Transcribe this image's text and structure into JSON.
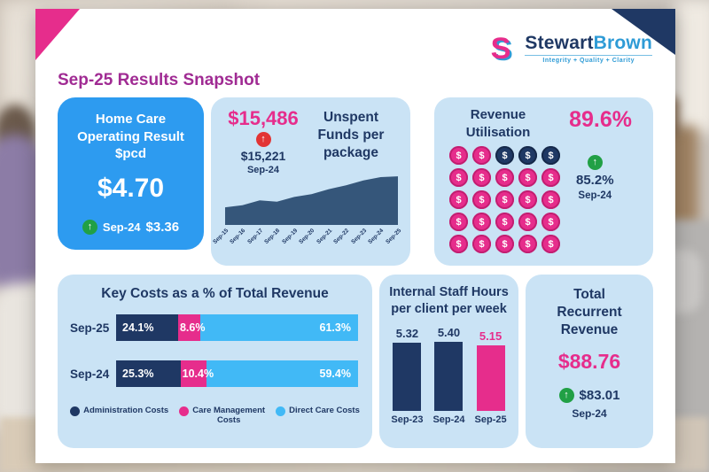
{
  "header": {
    "title": "Sep-25 Results Snapshot",
    "logo": {
      "part1": "Stewart",
      "part2": "Brown",
      "monogram": "S",
      "tagline": "Integrity + Quality + Clarity"
    }
  },
  "icons": {
    "up_arrow": "↑"
  },
  "colors": {
    "navy": "#1F3864",
    "pink": "#E62D8C",
    "panel_blue": "#CAE3F5",
    "bright_blue": "#2D9BF0",
    "sky_blue": "#41B9F6",
    "area_fill": "#35567A",
    "title_purple": "#A02B93",
    "logo_blue": "#2E9BD6",
    "green": "#21A045",
    "red": "#E23434"
  },
  "panels": {
    "home_care": {
      "title": "Home Care Operating Result $pcd",
      "value": "$4.70",
      "prev_label": "Sep-24",
      "prev_value": "$3.36",
      "trend_icon": "up-arrow-green"
    },
    "unspent_funds": {
      "title": "Unspent Funds per package",
      "value": "$15,486",
      "prev_value": "$15,221",
      "prev_label": "Sep-24",
      "trend_icon": "up-arrow-red",
      "x_labels": [
        "Sep-15",
        "Sep-16",
        "Sep-17",
        "Sep-18",
        "Sep-19",
        "Sep-20",
        "Sep-21",
        "Sep-22",
        "Sep-23",
        "Sep-24",
        "Sep-25"
      ],
      "values": [
        5600,
        6300,
        7800,
        7400,
        8900,
        9800,
        11400,
        12600,
        14200,
        15221,
        15486
      ]
    },
    "revenue_utilisation": {
      "title": "Revenue Utilisation",
      "value": "89.6%",
      "prev_value": "85.2%",
      "prev_label": "Sep-24",
      "trend_icon": "up-arrow-green",
      "coin_symbol": "$",
      "coin_rows": [
        [
          "pink",
          "pink",
          "navy",
          "navy",
          "navy"
        ],
        [
          "pink",
          "pink",
          "pink",
          "pink",
          "pink"
        ],
        [
          "pink",
          "pink",
          "pink",
          "pink",
          "pink"
        ],
        [
          "pink",
          "pink",
          "pink",
          "pink",
          "pink"
        ],
        [
          "pink",
          "pink",
          "pink",
          "pink",
          "pink"
        ]
      ]
    },
    "key_costs": {
      "title": "Key Costs as a % of Total Revenue",
      "rows": [
        {
          "label": "Sep-25",
          "values": [
            24.1,
            8.6,
            61.3
          ],
          "value_labels": [
            "24.1%",
            "8.6%",
            "61.3%"
          ]
        },
        {
          "label": "Sep-24",
          "values": [
            25.3,
            10.4,
            59.4
          ],
          "value_labels": [
            "25.3%",
            "10.4%",
            "59.4%"
          ]
        }
      ],
      "legend": [
        {
          "label": "Administration Costs",
          "color": "#1F3864"
        },
        {
          "label": "Care Management Costs",
          "color": "#E62D8C"
        },
        {
          "label": "Direct Care Costs",
          "color": "#41B9F6"
        }
      ]
    },
    "staff_hours": {
      "title": "Internal Staff Hours per client per week",
      "categories": [
        "Sep-23",
        "Sep-24",
        "Sep-25"
      ],
      "values": [
        5.32,
        5.4,
        5.15
      ],
      "value_labels": [
        "5.32",
        "5.40",
        "5.15"
      ],
      "bar_colors": [
        "navy",
        "navy",
        "pink"
      ]
    },
    "total_revenue": {
      "title": "Total Recurrent Revenue",
      "value": "$88.76",
      "prev_value": "$83.01",
      "prev_label": "Sep-24",
      "trend_icon": "up-arrow-green"
    }
  },
  "chart_data": [
    {
      "type": "area",
      "title": "Unspent Funds per package",
      "x": [
        "Sep-15",
        "Sep-16",
        "Sep-17",
        "Sep-18",
        "Sep-19",
        "Sep-20",
        "Sep-21",
        "Sep-22",
        "Sep-23",
        "Sep-24",
        "Sep-25"
      ],
      "values": [
        5600,
        6300,
        7800,
        7400,
        8900,
        9800,
        11400,
        12600,
        14200,
        15221,
        15486
      ],
      "ylim": [
        0,
        16000
      ],
      "grid": false,
      "legend": "none"
    },
    {
      "type": "bar",
      "stacked": true,
      "orientation": "horizontal",
      "title": "Key Costs as a % of Total Revenue",
      "categories": [
        "Sep-25",
        "Sep-24"
      ],
      "series": [
        {
          "name": "Administration Costs",
          "values": [
            24.1,
            25.3
          ],
          "color": "#1F3864"
        },
        {
          "name": "Care Management Costs",
          "values": [
            8.6,
            10.4
          ],
          "color": "#E62D8C"
        },
        {
          "name": "Direct Care Costs",
          "values": [
            61.3,
            59.4
          ],
          "color": "#41B9F6"
        }
      ],
      "legend_position": "bottom"
    },
    {
      "type": "bar",
      "title": "Internal Staff Hours per client per week",
      "categories": [
        "Sep-23",
        "Sep-24",
        "Sep-25"
      ],
      "values": [
        5.32,
        5.4,
        5.15
      ],
      "colors": [
        "#1F3864",
        "#1F3864",
        "#E62D8C"
      ],
      "ylim": [
        0,
        5.4
      ],
      "grid": false
    }
  ]
}
